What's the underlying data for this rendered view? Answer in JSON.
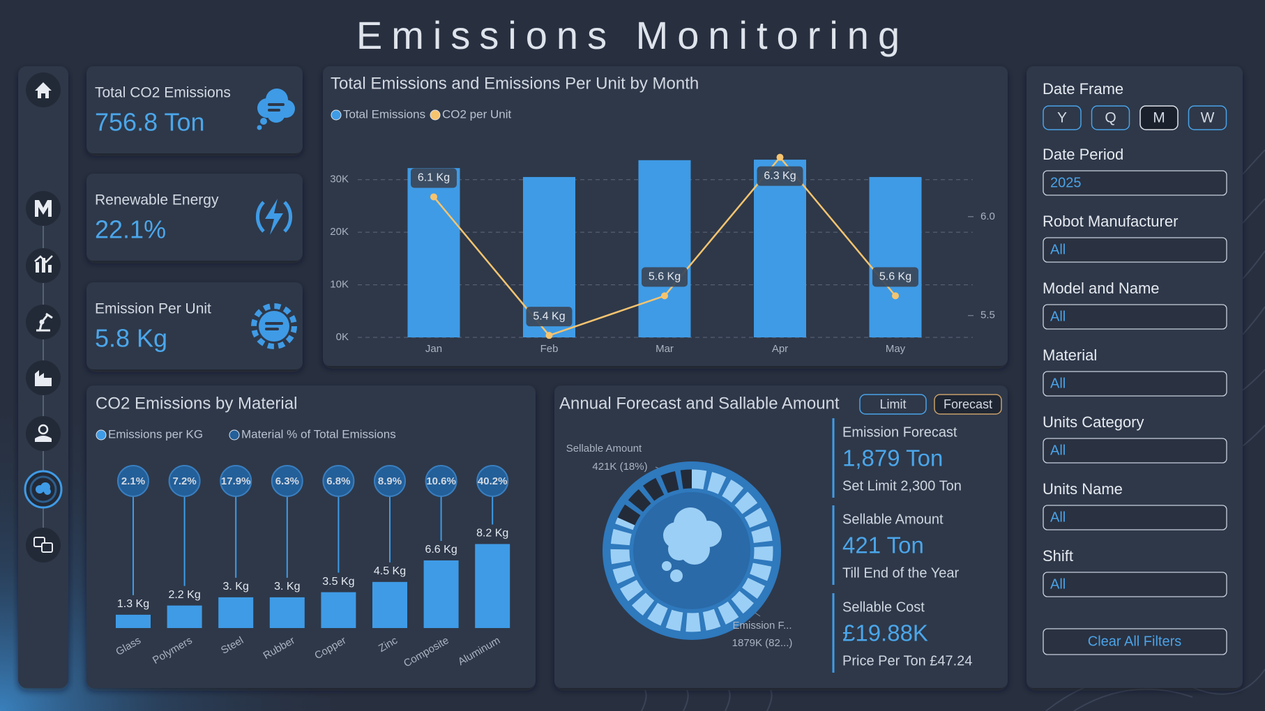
{
  "header": {
    "title": "Emissions Monitoring"
  },
  "kpis": [
    {
      "label": "Total CO2 Emissions",
      "value": "756.8 Ton"
    },
    {
      "label": "Renewable Energy",
      "value": "22.1%"
    },
    {
      "label": "Emission Per Unit",
      "value": "5.8 Kg"
    }
  ],
  "chart_data": [
    {
      "type": "bar",
      "title": "Total Emissions and Emissions Per Unit by Month",
      "categories": [
        "Jan",
        "Feb",
        "Mar",
        "Apr",
        "May"
      ],
      "series": [
        {
          "name": "Total Emissions",
          "color": "#3f9be6",
          "values": [
            32200,
            30500,
            33700,
            33800,
            30500
          ]
        },
        {
          "name": "CO2 per Unit",
          "type": "line",
          "axis": "y2",
          "color": "#f6c46f",
          "values": [
            6.1,
            5.4,
            5.6,
            6.3,
            5.6
          ],
          "value_labels": [
            "6.1 Kg",
            "5.4 Kg",
            "5.6 Kg",
            "6.3 Kg",
            "5.6 Kg"
          ]
        }
      ],
      "ylim": [
        0,
        35000
      ],
      "yticks": [
        {
          "value": 0,
          "label": "0K"
        },
        {
          "value": 10000,
          "label": "10K"
        },
        {
          "value": 20000,
          "label": "20K"
        },
        {
          "value": 30000,
          "label": "30K"
        }
      ],
      "y2lim": [
        5.39,
        6.32
      ],
      "y2ticks": [
        5.5,
        {
          "value": 6,
          "label": "6.0"
        }
      ],
      "grid": true,
      "legend": "top-left"
    },
    {
      "type": "lollipop",
      "title": "CO2 Emissions by Material",
      "categories": [
        "Glass",
        "Polymers",
        "Steel",
        "Rubber",
        "Copper",
        "Zinc",
        "Composite",
        "Aluminum"
      ],
      "series": [
        {
          "name": "Emissions per KG",
          "color": "#3f9be6",
          "values": [
            1.3,
            2.2,
            3,
            3,
            3.5,
            4.5,
            6.6,
            8.2
          ],
          "value_labels": [
            "1.3 Kg",
            "2.2 Kg",
            "3. Kg",
            "3. Kg",
            "3.5 Kg",
            "4.5 Kg",
            "6.6 Kg",
            "8.2 Kg"
          ]
        },
        {
          "name": "Material % of Total Emissions",
          "color": "#235f99",
          "values": [
            2.1,
            7.2,
            17.9,
            6.3,
            6.8,
            8.9,
            10.6,
            40.2
          ],
          "value_labels": [
            "2.1%",
            "7.2%",
            "17.9%",
            "6.3%",
            "6.8%",
            "8.9%",
            "10.6%",
            "40.2%"
          ]
        }
      ],
      "ylim": [
        0,
        10
      ],
      "legend": "top-left"
    },
    {
      "type": "donut",
      "title": "Annual Forecast and Sallable Amount",
      "categories": [
        "Sellable Amount",
        "Emission F..."
      ],
      "values": [
        421000,
        1879000
      ],
      "value_labels": [
        "421K (18%)",
        "1879K (82...)"
      ],
      "colors": [
        "#232b39",
        "#9ccff5"
      ]
    }
  ],
  "forecast": {
    "buttons": [
      "Limit",
      "Forecast"
    ],
    "stats": [
      {
        "label": "Emission Forecast",
        "value": "1,879 Ton",
        "note": "Set Limit 2,300 Ton"
      },
      {
        "label": "Sellable Amount",
        "value": "421 Ton",
        "note": "Till End of the Year"
      },
      {
        "label": "Sellable Cost",
        "value": "£19.88K",
        "note": "Price Per Ton £47.24"
      }
    ]
  },
  "filters": {
    "date_frame": {
      "label": "Date Frame",
      "options": [
        "Y",
        "Q",
        "M",
        "W"
      ],
      "selected": "M"
    },
    "fields": [
      {
        "label": "Date Period",
        "value": "2025"
      },
      {
        "label": "Robot Manufacturer",
        "value": "All"
      },
      {
        "label": "Model and Name",
        "value": "All"
      },
      {
        "label": "Material",
        "value": "All"
      },
      {
        "label": "Units Category",
        "value": "All"
      },
      {
        "label": "Units Name",
        "value": "All"
      },
      {
        "label": "Shift",
        "value": "All"
      }
    ],
    "clear": "Clear All Filters"
  }
}
